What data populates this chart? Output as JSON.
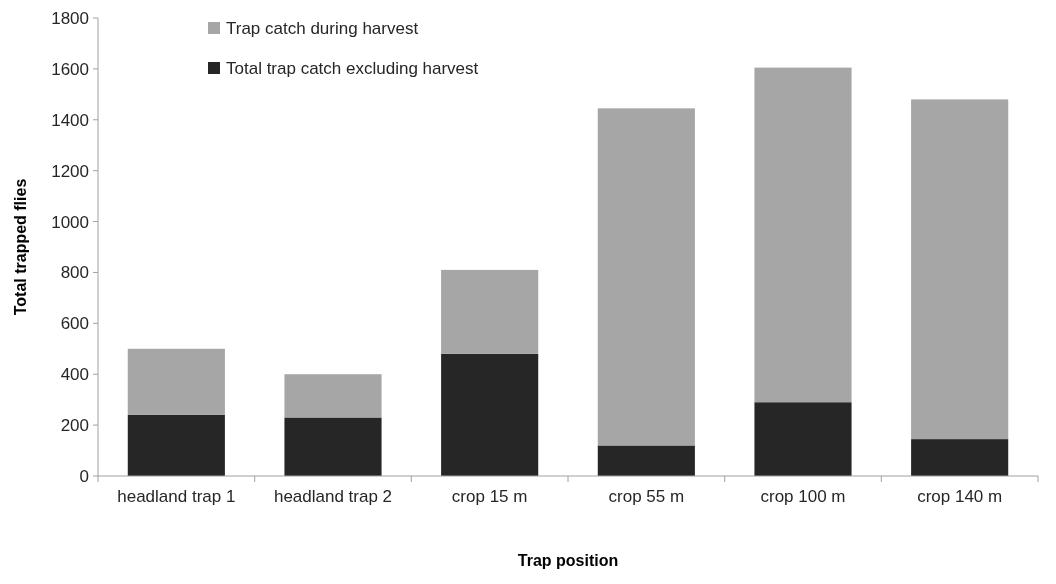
{
  "chart_data": {
    "type": "bar",
    "stacked": true,
    "xlabel": "Trap position",
    "ylabel": "Total trapped flies",
    "categories": [
      "headland trap 1",
      "headland trap 2",
      "crop 15 m",
      "crop 55 m",
      "crop 100 m",
      "crop 140 m"
    ],
    "series": [
      {
        "name": "Total trap catch excluding harvest",
        "color": "#262626",
        "values": [
          240,
          230,
          480,
          120,
          290,
          145
        ]
      },
      {
        "name": "Trap catch during harvest",
        "color": "#a6a6a6",
        "values": [
          260,
          170,
          330,
          1325,
          1315,
          1335
        ]
      }
    ],
    "ylim": [
      0,
      1800
    ],
    "yticks": [
      0,
      200,
      400,
      600,
      800,
      1000,
      1200,
      1400,
      1600,
      1800
    ],
    "legend": "top left",
    "grid": false
  }
}
